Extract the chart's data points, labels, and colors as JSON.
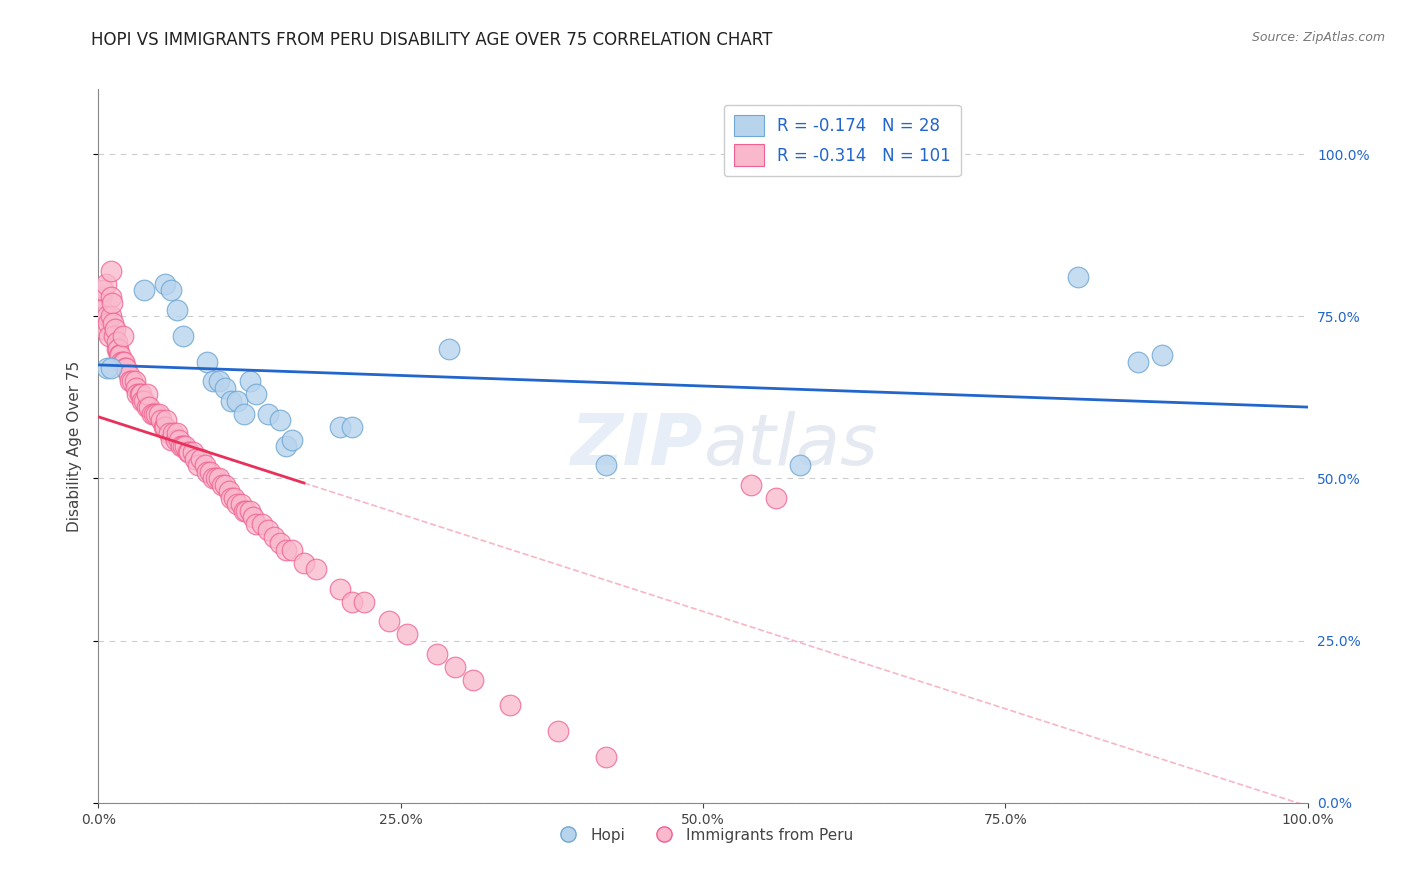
{
  "title": "HOPI VS IMMIGRANTS FROM PERU DISABILITY AGE OVER 75 CORRELATION CHART",
  "source": "Source: ZipAtlas.com",
  "ylabel": "Disability Age Over 75",
  "xlabel": "",
  "xlim": [
    0.0,
    1.0
  ],
  "ylim": [
    0.0,
    1.1
  ],
  "yticks": [
    0.0,
    0.25,
    0.5,
    0.75,
    1.0
  ],
  "xticks": [
    0.0,
    0.25,
    0.5,
    0.75,
    1.0
  ],
  "hopi_color": "#b8d4ed",
  "hopi_edge_color": "#6fa8d4",
  "peru_color": "#f9b8cc",
  "peru_edge_color": "#f06090",
  "hopi_line_color": "#2266cc",
  "peru_line_color": "#e8305a",
  "legend_hopi_r": "-0.174",
  "legend_hopi_n": "28",
  "legend_peru_r": "-0.314",
  "legend_peru_n": "101",
  "hopi_intercept": 0.675,
  "hopi_slope": -0.065,
  "peru_intercept": 0.595,
  "peru_slope": -0.6,
  "background_color": "#ffffff",
  "grid_color": "#cccccc",
  "title_fontsize": 12,
  "axis_label_fontsize": 11,
  "tick_fontsize": 10,
  "watermark_text": "ZIPatlas",
  "hopi_x": [
    0.007,
    0.01,
    0.038,
    0.055,
    0.06,
    0.065,
    0.07,
    0.09,
    0.095,
    0.1,
    0.105,
    0.11,
    0.115,
    0.12,
    0.125,
    0.13,
    0.14,
    0.15,
    0.155,
    0.16,
    0.2,
    0.21,
    0.29,
    0.42,
    0.58,
    0.81,
    0.86,
    0.88
  ],
  "hopi_y": [
    0.67,
    0.67,
    0.79,
    0.8,
    0.79,
    0.76,
    0.72,
    0.68,
    0.65,
    0.65,
    0.64,
    0.62,
    0.62,
    0.6,
    0.65,
    0.63,
    0.6,
    0.59,
    0.55,
    0.56,
    0.58,
    0.58,
    0.7,
    0.52,
    0.52,
    0.81,
    0.68,
    0.69
  ],
  "peru_x": [
    0.002,
    0.003,
    0.004,
    0.005,
    0.006,
    0.007,
    0.008,
    0.009,
    0.01,
    0.01,
    0.01,
    0.011,
    0.012,
    0.013,
    0.014,
    0.015,
    0.015,
    0.016,
    0.017,
    0.018,
    0.019,
    0.02,
    0.02,
    0.021,
    0.022,
    0.023,
    0.025,
    0.026,
    0.028,
    0.03,
    0.031,
    0.032,
    0.034,
    0.035,
    0.036,
    0.038,
    0.04,
    0.04,
    0.042,
    0.044,
    0.046,
    0.048,
    0.05,
    0.052,
    0.054,
    0.055,
    0.056,
    0.058,
    0.06,
    0.062,
    0.064,
    0.065,
    0.067,
    0.068,
    0.07,
    0.072,
    0.074,
    0.075,
    0.078,
    0.08,
    0.082,
    0.085,
    0.088,
    0.09,
    0.092,
    0.095,
    0.097,
    0.1,
    0.102,
    0.105,
    0.108,
    0.11,
    0.112,
    0.115,
    0.118,
    0.12,
    0.122,
    0.125,
    0.128,
    0.13,
    0.135,
    0.14,
    0.145,
    0.15,
    0.155,
    0.16,
    0.17,
    0.18,
    0.2,
    0.21,
    0.22,
    0.24,
    0.255,
    0.28,
    0.295,
    0.31,
    0.34,
    0.38,
    0.42,
    0.54,
    0.56
  ],
  "peru_y": [
    0.78,
    0.76,
    0.79,
    0.73,
    0.8,
    0.75,
    0.74,
    0.72,
    0.82,
    0.78,
    0.75,
    0.77,
    0.74,
    0.72,
    0.73,
    0.7,
    0.71,
    0.7,
    0.69,
    0.69,
    0.68,
    0.68,
    0.72,
    0.68,
    0.67,
    0.67,
    0.66,
    0.65,
    0.65,
    0.65,
    0.64,
    0.63,
    0.63,
    0.63,
    0.62,
    0.62,
    0.61,
    0.63,
    0.61,
    0.6,
    0.6,
    0.6,
    0.6,
    0.59,
    0.58,
    0.58,
    0.59,
    0.57,
    0.56,
    0.57,
    0.56,
    0.57,
    0.56,
    0.55,
    0.55,
    0.55,
    0.54,
    0.54,
    0.54,
    0.53,
    0.52,
    0.53,
    0.52,
    0.51,
    0.51,
    0.5,
    0.5,
    0.5,
    0.49,
    0.49,
    0.48,
    0.47,
    0.47,
    0.46,
    0.46,
    0.45,
    0.45,
    0.45,
    0.44,
    0.43,
    0.43,
    0.42,
    0.41,
    0.4,
    0.39,
    0.39,
    0.37,
    0.36,
    0.33,
    0.31,
    0.31,
    0.28,
    0.26,
    0.23,
    0.21,
    0.19,
    0.15,
    0.11,
    0.07,
    0.49,
    0.47
  ]
}
